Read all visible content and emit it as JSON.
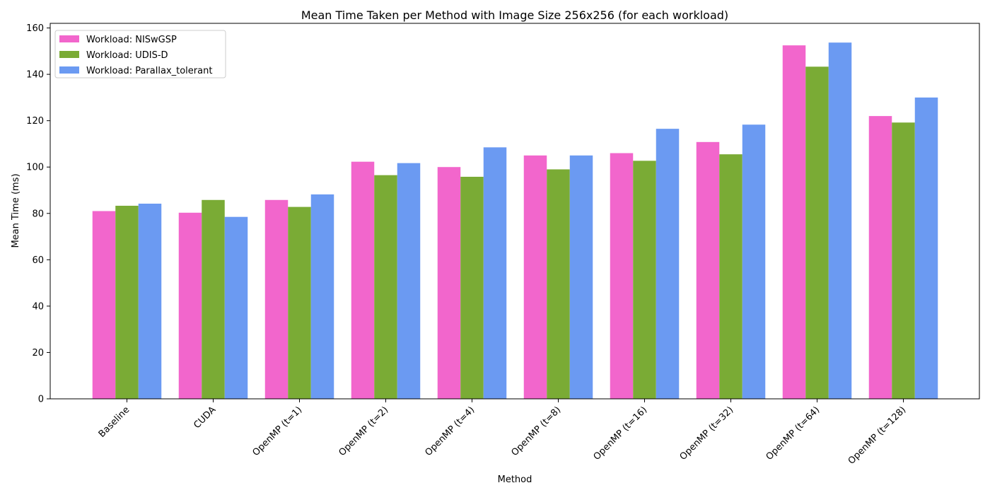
{
  "chart_data": {
    "type": "bar",
    "title": "Mean Time Taken per Method with Image Size 256x256 (for each workload)",
    "xlabel": "Method",
    "ylabel": "Mean Time (ms)",
    "ylim": [
      0,
      162
    ],
    "yticks": [
      0,
      20,
      40,
      60,
      80,
      100,
      120,
      140,
      160
    ],
    "grid": false,
    "legend_position": "top-left",
    "categories": [
      "Baseline",
      "CUDA",
      "OpenMP (t=1)",
      "OpenMP (t=2)",
      "OpenMP (t=4)",
      "OpenMP (t=8)",
      "OpenMP (t=16)",
      "OpenMP (t=32)",
      "OpenMP (t=64)",
      "OpenMP (t=128)"
    ],
    "series": [
      {
        "name": "Workload: NISwGSP",
        "color": "#f266cc",
        "values": [
          81.0,
          80.3,
          85.8,
          102.3,
          100.0,
          105.0,
          106.0,
          110.8,
          152.5,
          122.0
        ]
      },
      {
        "name": "Workload: UDIS-D",
        "color": "#7aab35",
        "values": [
          83.3,
          85.8,
          82.8,
          96.5,
          95.8,
          99.0,
          102.7,
          105.5,
          143.3,
          119.2
        ]
      },
      {
        "name": "Workload: Parallax_tolerant",
        "color": "#6b9af2",
        "values": [
          84.2,
          78.5,
          88.2,
          101.7,
          108.5,
          105.0,
          116.5,
          118.3,
          153.7,
          130.0
        ]
      }
    ]
  }
}
